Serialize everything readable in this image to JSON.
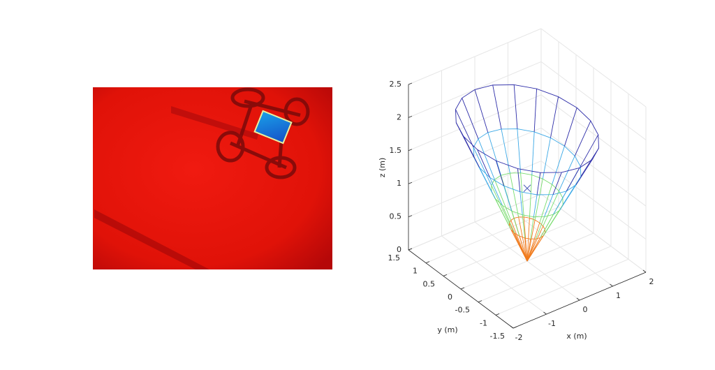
{
  "chart_data": {
    "type": "cone-mesh",
    "xlabel": "x (m)",
    "ylabel": "y (m)",
    "zlabel": "z (m)",
    "xlim": [
      -2,
      2
    ],
    "ylim": [
      -1.5,
      1.5
    ],
    "zlim": [
      0,
      2.5
    ],
    "xticks": [
      -2,
      -1,
      0,
      1,
      2
    ],
    "yticks": [
      -1.5,
      -1,
      -0.5,
      0,
      0.5,
      1,
      1.5
    ],
    "zticks": [
      0,
      0.5,
      1,
      1.5,
      2,
      2.5
    ],
    "grid": true,
    "apex": {
      "x": 0,
      "y": 0,
      "z": 0
    },
    "meridians": 20,
    "rings": [
      {
        "z": 0.5,
        "r": 0.375,
        "color": "#f07a1c"
      },
      {
        "z": 1,
        "r": 0.75,
        "color": "#78dc6e"
      },
      {
        "z": 1.5,
        "r": 1.125,
        "color": "#3aa8e6"
      },
      {
        "z": 2,
        "r": 1.5,
        "color": "#2c2ca8"
      }
    ],
    "marker": {
      "x": 0,
      "y": 0,
      "z": 1.1,
      "color": "#4a5ab8"
    }
  }
}
